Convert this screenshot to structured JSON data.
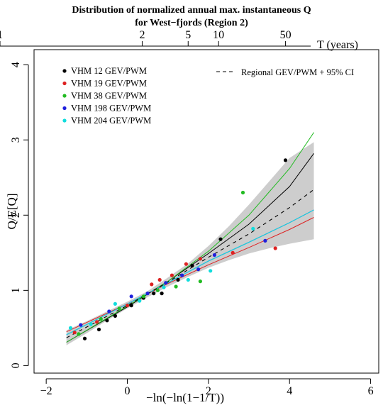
{
  "chart_data": {
    "type": "scatter",
    "title": "Distribution of normalized annual max. instantaneous Q",
    "subtitle": "for West−fjords (Region 2)",
    "xlabel": "−ln(−ln(1−1/T))",
    "ylabel": "Q/E[Q]",
    "xlim": [
      -2.3,
      6.2
    ],
    "ylim": [
      -0.1,
      4.2
    ],
    "x_ticks": [
      -2,
      0,
      2,
      4,
      6
    ],
    "x_tick_labels": [
      "−2",
      "0",
      "2",
      "4",
      "6"
    ],
    "y_ticks": [
      0,
      1,
      2,
      3,
      4
    ],
    "y_tick_labels": [
      "0",
      "1",
      "2",
      "3",
      "4"
    ],
    "top_axis": {
      "label": "T (years)",
      "ticks": [
        1,
        2,
        5,
        10,
        50
      ],
      "tick_labels": [
        "1",
        "2",
        "5",
        "10",
        "50"
      ]
    },
    "grid": false,
    "legend": {
      "placement": "top-left",
      "entries": [
        {
          "label": "VHM 12 GEV/PWM",
          "color": "#000000"
        },
        {
          "label": "VHM 19 GEV/PWM",
          "color": "#dd2222"
        },
        {
          "label": "VHM 38 GEV/PWM",
          "color": "#22bb22"
        },
        {
          "label": "VHM 198 GEV/PWM",
          "color": "#1f1fdd"
        },
        {
          "label": "VHM 204 GEV/PWM",
          "color": "#11dddd"
        }
      ]
    },
    "regional_legend": {
      "label": "Regional GEV/PWM  + 95% CI",
      "placement": "top-right"
    },
    "band": {
      "color": "#c8c8c8",
      "x": [
        -1.5,
        -1.0,
        -0.5,
        0,
        0.5,
        1.0,
        1.5,
        2.0,
        2.5,
        3.0,
        3.5,
        4.0,
        4.6
      ],
      "lower": [
        0.27,
        0.43,
        0.6,
        0.76,
        0.91,
        1.05,
        1.18,
        1.3,
        1.4,
        1.49,
        1.56,
        1.62,
        1.68
      ],
      "upper": [
        0.47,
        0.59,
        0.72,
        0.85,
        0.99,
        1.17,
        1.36,
        1.59,
        1.85,
        2.14,
        2.45,
        2.76,
        2.97
      ]
    },
    "series": [
      {
        "name": "VHM 12 GEV/PWM",
        "color": "#000000",
        "points": [
          [
            -1.05,
            0.36
          ],
          [
            -0.7,
            0.48
          ],
          [
            -0.5,
            0.6
          ],
          [
            -0.3,
            0.66
          ],
          [
            0.1,
            0.8
          ],
          [
            0.4,
            0.9
          ],
          [
            0.65,
            0.96
          ],
          [
            0.85,
            0.96
          ],
          [
            1.25,
            1.14
          ],
          [
            1.6,
            1.33
          ],
          [
            2.3,
            1.68
          ],
          [
            3.9,
            2.73
          ]
        ],
        "line": {
          "x": [
            -1.5,
            0,
            1,
            2,
            3,
            4,
            4.6
          ],
          "y": [
            0.31,
            0.78,
            1.12,
            1.49,
            1.88,
            2.38,
            2.82
          ]
        }
      },
      {
        "name": "VHM 19 GEV/PWM",
        "color": "#dd2222",
        "points": [
          [
            -1.3,
            0.44
          ],
          [
            -0.75,
            0.58
          ],
          [
            0.0,
            0.8
          ],
          [
            0.6,
            1.08
          ],
          [
            0.8,
            1.14
          ],
          [
            1.1,
            1.2
          ],
          [
            1.45,
            1.35
          ],
          [
            1.8,
            1.42
          ],
          [
            2.6,
            1.5
          ],
          [
            3.65,
            1.56
          ]
        ],
        "line": {
          "x": [
            -1.5,
            0,
            1,
            2,
            3,
            4,
            4.6
          ],
          "y": [
            0.45,
            0.82,
            1.09,
            1.34,
            1.57,
            1.81,
            1.97
          ]
        }
      },
      {
        "name": "VHM 38 GEV/PWM",
        "color": "#22bb22",
        "points": [
          [
            -1.2,
            0.42
          ],
          [
            -0.65,
            0.62
          ],
          [
            -0.2,
            0.76
          ],
          [
            0.4,
            0.92
          ],
          [
            0.75,
            1.0
          ],
          [
            1.2,
            1.05
          ],
          [
            1.8,
            1.12
          ],
          [
            2.85,
            2.3
          ]
        ],
        "line": {
          "x": [
            -1.5,
            0,
            1,
            2,
            3,
            4,
            4.6
          ],
          "y": [
            0.31,
            0.79,
            1.12,
            1.52,
            2.0,
            2.62,
            3.1
          ]
        }
      },
      {
        "name": "VHM 198 GEV/PWM",
        "color": "#1f1fdd",
        "points": [
          [
            -1.15,
            0.54
          ],
          [
            -0.45,
            0.72
          ],
          [
            0.1,
            0.92
          ],
          [
            0.5,
            0.96
          ],
          [
            0.95,
            1.1
          ],
          [
            1.35,
            1.2
          ],
          [
            1.75,
            1.28
          ],
          [
            2.15,
            1.47
          ],
          [
            3.4,
            1.66
          ]
        ],
        "line": {
          "x": [
            -1.5,
            0,
            1,
            2,
            3,
            4,
            4.6
          ],
          "y": [
            0.41,
            0.82,
            1.1,
            1.39,
            1.64,
            1.9,
            2.07
          ]
        }
      },
      {
        "name": "VHM 204 GEV/PWM",
        "color": "#11dddd",
        "points": [
          [
            -1.4,
            0.5
          ],
          [
            -0.9,
            0.55
          ],
          [
            -0.3,
            0.82
          ],
          [
            0.3,
            0.86
          ],
          [
            0.9,
            1.04
          ],
          [
            1.5,
            1.14
          ],
          [
            2.05,
            1.26
          ],
          [
            3.1,
            1.82
          ]
        ],
        "line": {
          "x": [
            -1.5,
            0,
            1,
            2,
            3,
            4,
            4.6
          ],
          "y": [
            0.41,
            0.82,
            1.1,
            1.39,
            1.64,
            1.9,
            2.07
          ]
        }
      },
      {
        "name": "Regional GEV/PWM",
        "color": "#000000",
        "dashed": true,
        "line": {
          "x": [
            -1.5,
            0,
            1,
            2,
            3,
            4,
            4.6
          ],
          "y": [
            0.37,
            0.8,
            1.11,
            1.44,
            1.75,
            2.1,
            2.34
          ]
        }
      }
    ]
  }
}
